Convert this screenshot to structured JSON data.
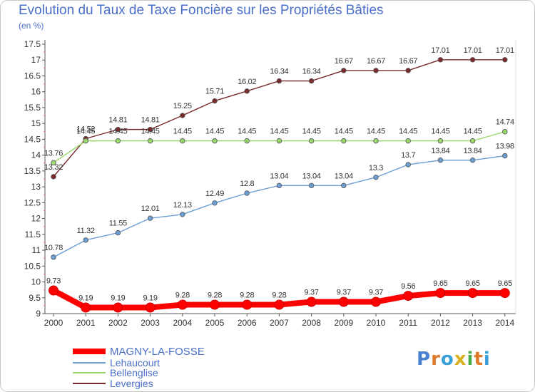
{
  "chart_data": {
    "type": "line",
    "title": "Evolution du Taux de Taxe Foncière sur les Propriétés Bâties",
    "subtitle": "(en %)",
    "x": [
      "2000",
      "2001",
      "2002",
      "2003",
      "2004",
      "2005",
      "2006",
      "2007",
      "2008",
      "2009",
      "2010",
      "2011",
      "2012",
      "2013",
      "2014"
    ],
    "ylim": [
      9,
      17.5
    ],
    "yticks": [
      "9",
      "9.5",
      "10",
      "10.5",
      "11",
      "11.5",
      "12",
      "12.5",
      "13",
      "13.5",
      "14",
      "14.5",
      "15",
      "15.5",
      "16",
      "16.5",
      "17",
      "17.5"
    ],
    "grid": false,
    "legend_position": "bottom-left",
    "series": [
      {
        "name": "MAGNY-LA-FOSSE",
        "color": "#ff0000",
        "values": [
          9.73,
          9.19,
          9.19,
          9.19,
          9.28,
          9.28,
          9.28,
          9.28,
          9.37,
          9.37,
          9.37,
          9.56,
          9.65,
          9.65,
          9.65
        ],
        "labels": [
          "9.73",
          "9.19",
          "9.19",
          "9.19",
          "9.28",
          "9.28",
          "9.28",
          "9.28",
          "9.37",
          "9.37",
          "9.37",
          "9.56",
          "9.65",
          "9.65",
          "9.65"
        ]
      },
      {
        "name": "Lehaucourt",
        "color": "#6b9fd4",
        "values": [
          10.78,
          11.32,
          11.55,
          12.01,
          12.13,
          12.49,
          12.8,
          13.04,
          13.04,
          13.04,
          13.3,
          13.7,
          13.84,
          13.84,
          13.98
        ],
        "labels": [
          "10.78",
          "11.32",
          "11.55",
          "12.01",
          "12.13",
          "12.49",
          "12.8",
          "13.04",
          "13.04",
          "13.04",
          "13.3",
          "13.7",
          "13.84",
          "13.84",
          "13.98"
        ]
      },
      {
        "name": "Bellenglise",
        "color": "#99d66b",
        "values": [
          13.76,
          14.45,
          14.45,
          14.45,
          14.45,
          14.45,
          14.45,
          14.45,
          14.45,
          14.45,
          14.45,
          14.45,
          14.45,
          14.45,
          14.74
        ],
        "labels": [
          "13.76",
          "14.45",
          "14.45",
          "14.45",
          "14.45",
          "14.45",
          "14.45",
          "14.45",
          "14.45",
          "14.45",
          "14.45",
          "14.45",
          "14.45",
          "14.45",
          "14.74"
        ]
      },
      {
        "name": "Levergies",
        "color": "#7a2a2a",
        "values": [
          13.32,
          14.52,
          14.81,
          14.81,
          15.25,
          15.71,
          16.02,
          16.34,
          16.34,
          16.67,
          16.67,
          16.67,
          17.01,
          17.01,
          17.01
        ],
        "labels": [
          "13.32",
          "14.52",
          "14.81",
          "14.81",
          "15.25",
          "15.71",
          "16.02",
          "16.34",
          "16.34",
          "16.67",
          "16.67",
          "16.67",
          "17.01",
          "17.01",
          "17.01"
        ]
      }
    ]
  },
  "logo": {
    "text": "Proxiti",
    "letters": [
      {
        "ch": "P",
        "color": "#4a7fd0"
      },
      {
        "ch": "r",
        "color": "#e07a2a"
      },
      {
        "ch": "o",
        "color": "#3aa0d8"
      },
      {
        "ch": "x",
        "color": "#d8b020"
      },
      {
        "ch": "i",
        "color": "#4aaa4a"
      },
      {
        "ch": "t",
        "color": "#e07a2a"
      },
      {
        "ch": "i",
        "color": "#3aa0d8"
      }
    ]
  }
}
